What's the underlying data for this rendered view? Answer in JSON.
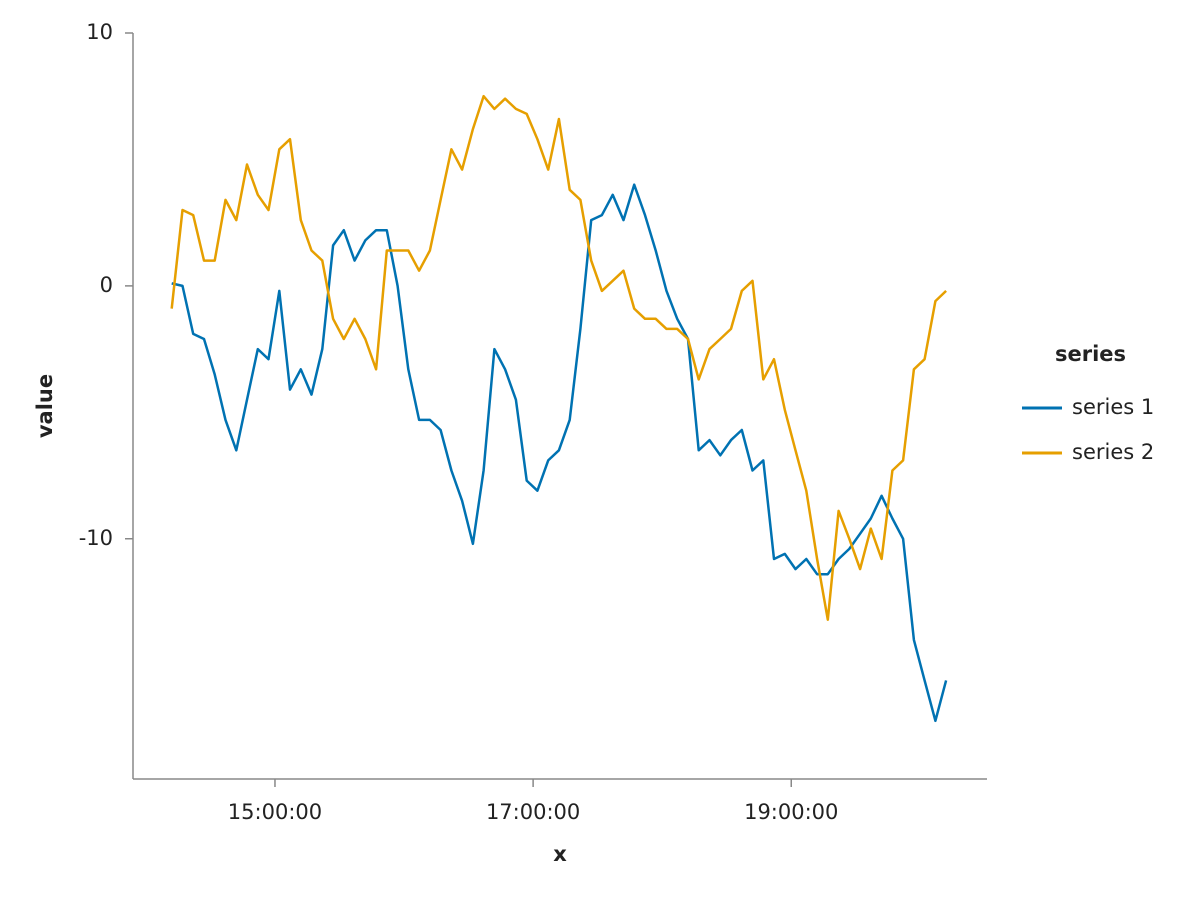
{
  "chart_data": {
    "type": "line",
    "x_label": "x",
    "y_label": "value",
    "legend_title": "series",
    "legend_position": "right",
    "x": [
      "14:12:00",
      "14:17:00",
      "14:22:00",
      "14:27:00",
      "14:32:00",
      "14:37:00",
      "14:42:00",
      "14:47:00",
      "14:52:00",
      "14:57:00",
      "15:02:00",
      "15:07:00",
      "15:12:00",
      "15:17:00",
      "15:22:00",
      "15:27:00",
      "15:32:00",
      "15:37:00",
      "15:42:00",
      "15:47:00",
      "15:52:00",
      "15:57:00",
      "16:02:00",
      "16:07:00",
      "16:12:00",
      "16:17:00",
      "16:22:00",
      "16:27:00",
      "16:32:00",
      "16:37:00",
      "16:42:00",
      "16:47:00",
      "16:52:00",
      "16:57:00",
      "17:02:00",
      "17:07:00",
      "17:12:00",
      "17:17:00",
      "17:22:00",
      "17:27:00",
      "17:32:00",
      "17:37:00",
      "17:42:00",
      "17:47:00",
      "17:52:00",
      "17:57:00",
      "18:02:00",
      "18:07:00",
      "18:12:00",
      "18:17:00",
      "18:22:00",
      "18:27:00",
      "18:32:00",
      "18:37:00",
      "18:42:00",
      "18:47:00",
      "18:52:00",
      "18:57:00",
      "19:02:00",
      "19:07:00",
      "19:12:00",
      "19:17:00",
      "19:22:00",
      "19:27:00",
      "19:32:00",
      "19:37:00",
      "19:42:00",
      "19:47:00",
      "19:52:00",
      "19:57:00",
      "20:02:00",
      "20:07:00",
      "20:12:00"
    ],
    "series": [
      {
        "name": "series 1",
        "color": "#0072b2",
        "values": [
          0.1,
          0,
          -1.9,
          -2.1,
          -3.5,
          -5.3,
          -6.5,
          -4.5,
          -2.5,
          -2.9,
          -0.2,
          -4.1,
          -3.3,
          -4.3,
          -2.5,
          1.6,
          2.2,
          1.0,
          1.8,
          2.2,
          2.2,
          0,
          -3.3,
          -5.3,
          -5.3,
          -5.7,
          -7.3,
          -8.5,
          -10.2,
          -7.3,
          -2.5,
          -3.3,
          -4.5,
          -7.7,
          -8.1,
          -6.9,
          -6.5,
          -5.3,
          -1.7,
          2.6,
          2.8,
          3.6,
          2.6,
          4.0,
          2.8,
          1.4,
          -0.2,
          -1.3,
          -2.1,
          -6.5,
          -6.1,
          -6.7,
          -6.1,
          -5.7,
          -7.3,
          -6.9,
          -10.8,
          -10.6,
          -11.2,
          -10.8,
          -11.4,
          -11.4,
          -10.8,
          -10.4,
          -9.8,
          -9.2,
          -8.3,
          -9.2,
          -10.0,
          -14.0,
          -15.6,
          -17.2,
          -15.6
        ]
      },
      {
        "name": "series 2",
        "color": "#e69f00",
        "values": [
          -0.9,
          3.0,
          2.8,
          1.0,
          1.0,
          3.4,
          2.6,
          4.8,
          3.6,
          3.0,
          5.4,
          5.8,
          2.6,
          1.4,
          1.0,
          -1.3,
          -2.1,
          -1.3,
          -2.1,
          -3.3,
          1.4,
          1.4,
          1.4,
          0.6,
          1.4,
          3.4,
          5.4,
          4.6,
          6.2,
          7.5,
          7.0,
          7.4,
          7.0,
          6.8,
          5.8,
          4.6,
          6.6,
          3.8,
          3.4,
          1.0,
          -0.2,
          0.2,
          0.6,
          -0.9,
          -1.3,
          -1.3,
          -1.7,
          -1.7,
          -2.1,
          -3.7,
          -2.5,
          -2.1,
          -1.7,
          -0.2,
          0.2,
          -3.7,
          -2.9,
          -4.9,
          -6.5,
          -8.1,
          -10.8,
          -13.2,
          -8.9,
          -10.0,
          -11.2,
          -9.6,
          -10.8,
          -7.3,
          -6.9,
          -3.3,
          -2.9,
          -0.6,
          -0.2
        ]
      }
    ],
    "xlim": [
      "13:54:00",
      "20:31:00"
    ],
    "xticks": [
      "15:00:00",
      "17:00:00",
      "19:00:00"
    ],
    "ylim": [
      -19.5,
      10
    ],
    "yticks": [
      -10,
      0,
      10
    ],
    "grid": false
  }
}
